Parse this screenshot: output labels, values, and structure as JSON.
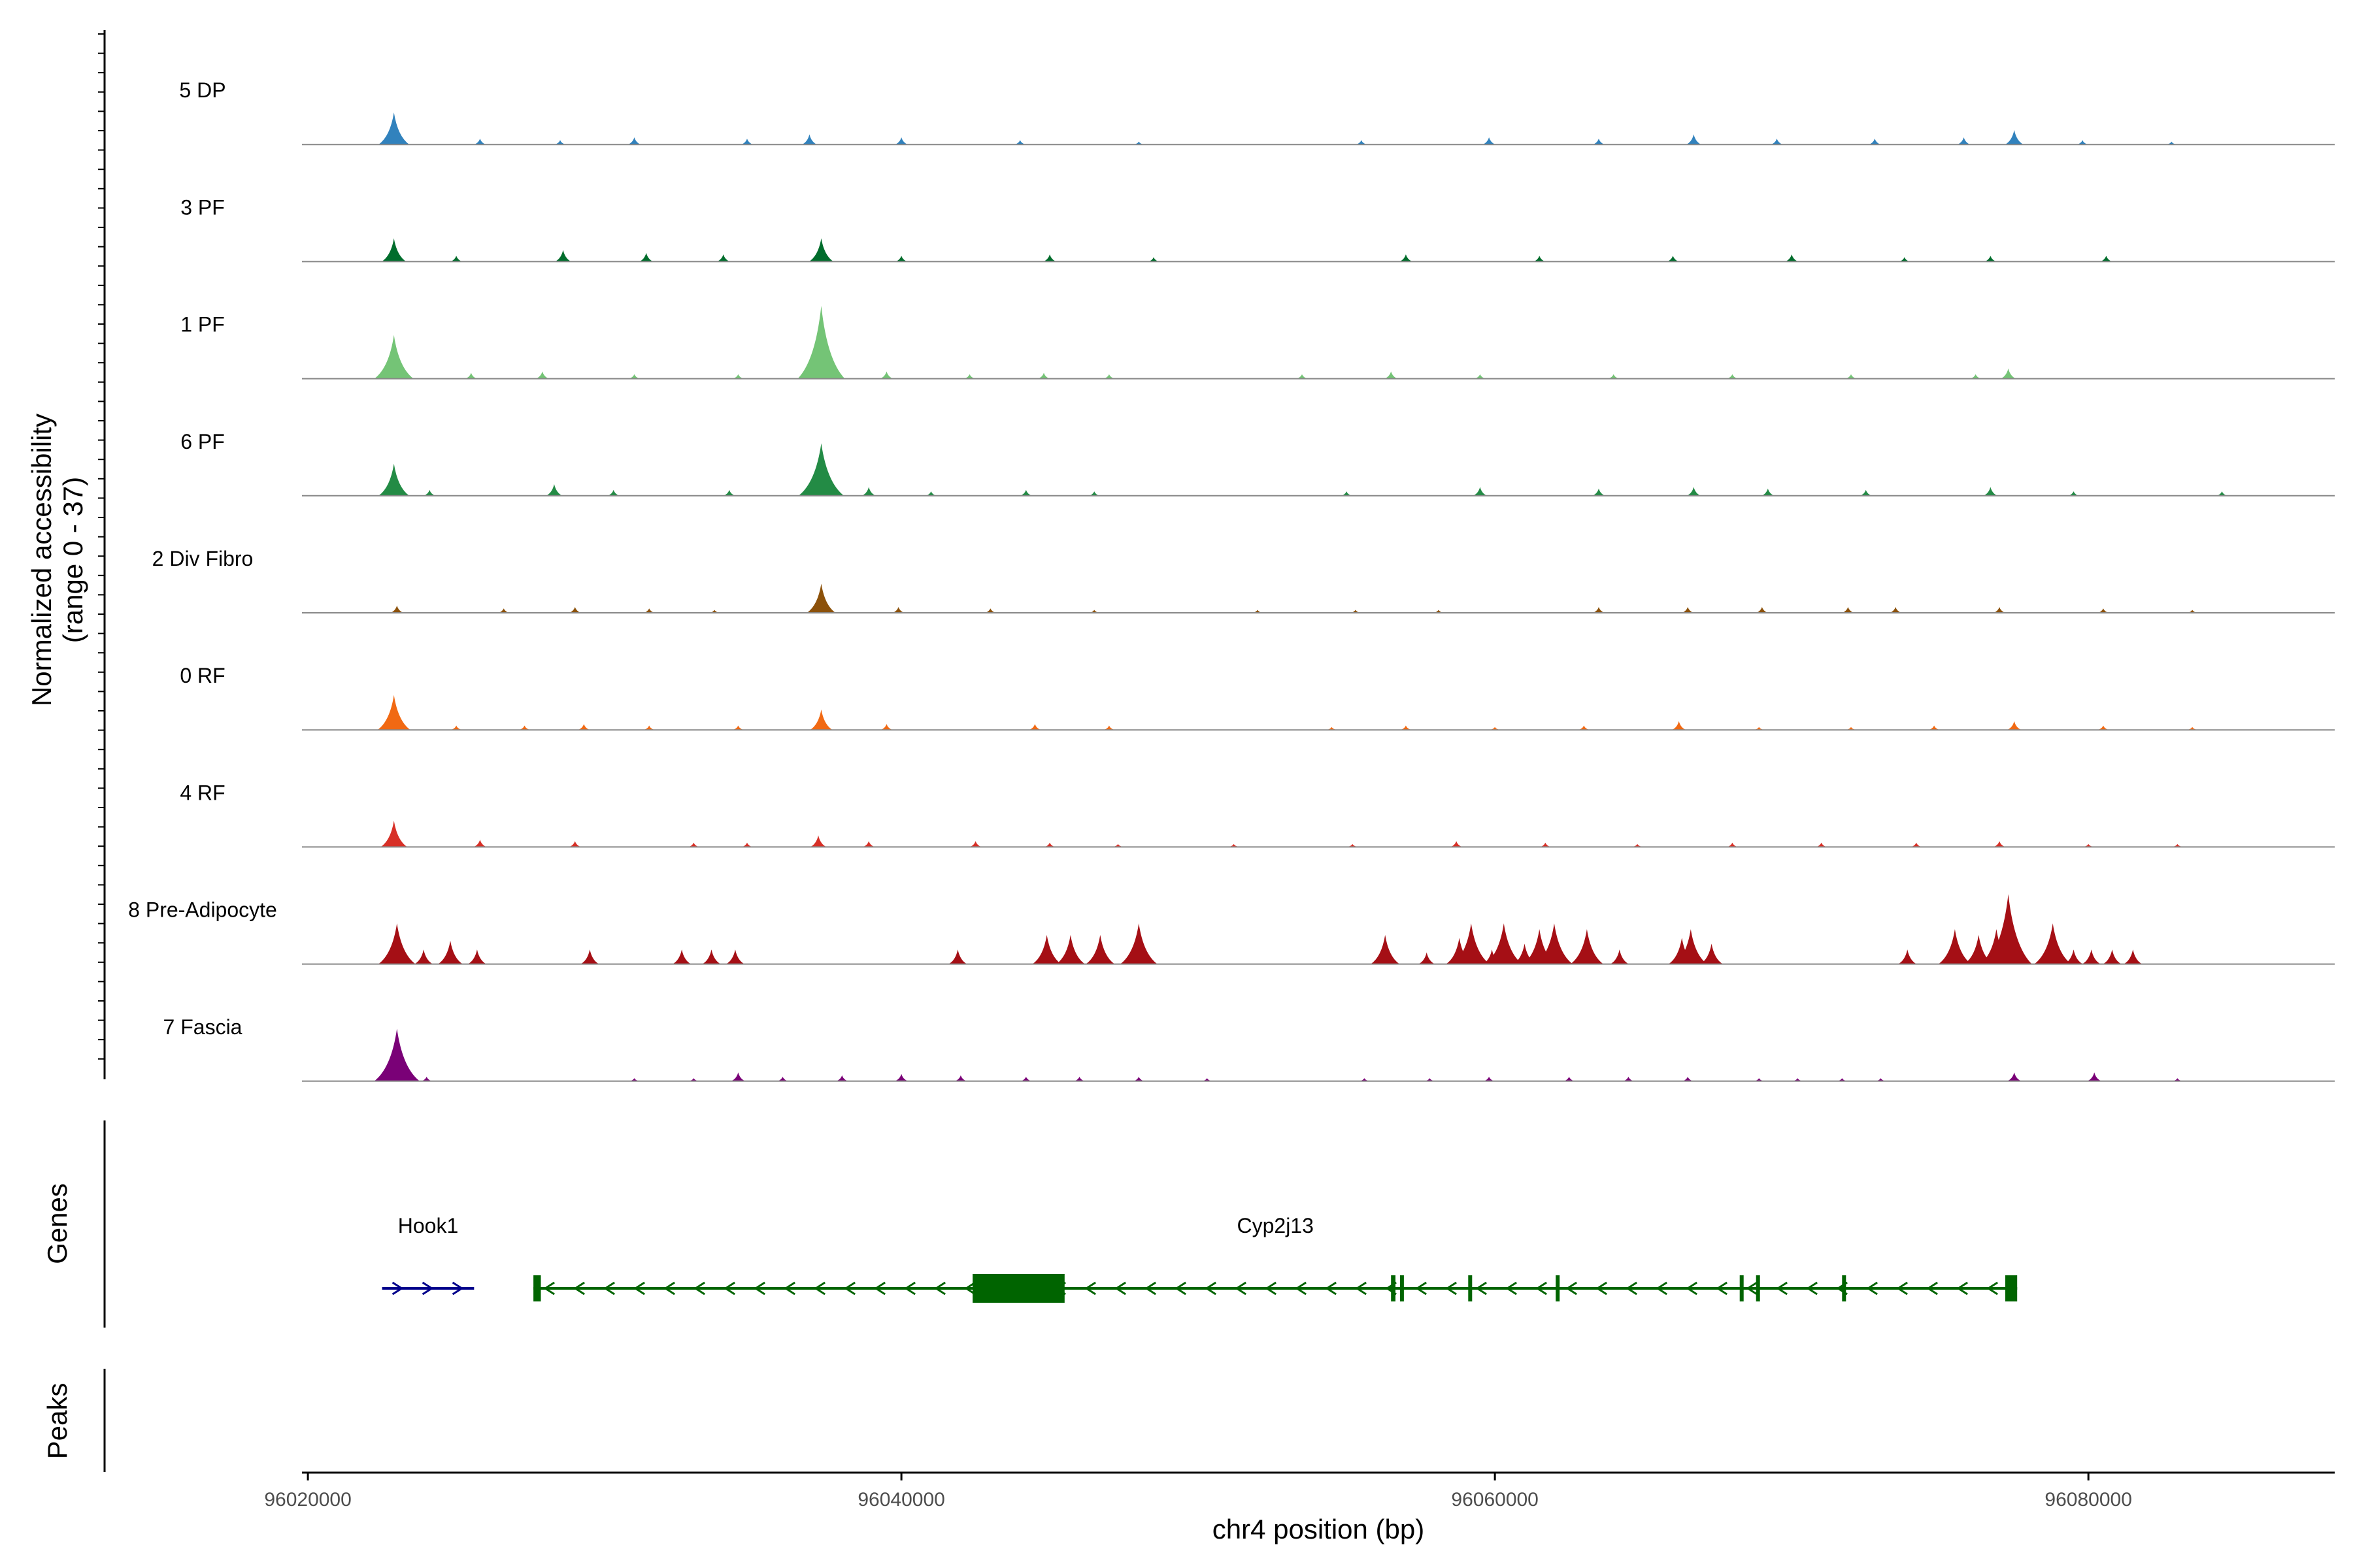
{
  "chart_data": {
    "type": "area",
    "title": "",
    "xlabel": "chr4 position (bp)",
    "ylabel": "Normalized accessibility",
    "ylabel_range": "(range 0 - 37)",
    "ylim": [
      0,
      37
    ],
    "xlim": [
      96019800,
      96088300
    ],
    "x_ticks": [
      96020000,
      96040000,
      96060000,
      96080000
    ],
    "x_tick_labels": [
      "96020000",
      "96040000",
      "96060000",
      "96080000"
    ],
    "tracks": [
      {
        "name": "5 DP",
        "color": "#3182bd",
        "peaks": [
          [
            96022900,
            11
          ],
          [
            96025800,
            2
          ],
          [
            96028500,
            1.5
          ],
          [
            96031000,
            2.5
          ],
          [
            96034800,
            2
          ],
          [
            96036900,
            3.5
          ],
          [
            96040000,
            2.5
          ],
          [
            96044000,
            1.5
          ],
          [
            96048000,
            1
          ],
          [
            96055500,
            1.5
          ],
          [
            96059800,
            2.5
          ],
          [
            96063500,
            2
          ],
          [
            96066700,
            3.5
          ],
          [
            96069500,
            2
          ],
          [
            96072800,
            2
          ],
          [
            96075800,
            2.5
          ],
          [
            96077500,
            5
          ],
          [
            96079800,
            1.5
          ],
          [
            96082800,
            1
          ]
        ]
      },
      {
        "name": "3 PF",
        "color": "#006d2c",
        "peaks": [
          [
            96022900,
            8
          ],
          [
            96025000,
            2
          ],
          [
            96028600,
            4
          ],
          [
            96031400,
            3
          ],
          [
            96034000,
            2.5
          ],
          [
            96037300,
            8
          ],
          [
            96040000,
            2
          ],
          [
            96045000,
            2.5
          ],
          [
            96048500,
            1.5
          ],
          [
            96057000,
            2.5
          ],
          [
            96061500,
            2
          ],
          [
            96066000,
            2
          ],
          [
            96070000,
            2.5
          ],
          [
            96073800,
            1.5
          ],
          [
            96076700,
            2
          ],
          [
            96080600,
            2
          ]
        ]
      },
      {
        "name": "1 PF",
        "color": "#74c476",
        "peaks": [
          [
            96022900,
            15
          ],
          [
            96025500,
            2
          ],
          [
            96027900,
            2.5
          ],
          [
            96031000,
            1.5
          ],
          [
            96034500,
            1.5
          ],
          [
            96037300,
            25
          ],
          [
            96039500,
            2.5
          ],
          [
            96042300,
            1.5
          ],
          [
            96044800,
            2
          ],
          [
            96047000,
            1.5
          ],
          [
            96053500,
            1.5
          ],
          [
            96056500,
            2.5
          ],
          [
            96059500,
            1.5
          ],
          [
            96064000,
            1.5
          ],
          [
            96068000,
            1.5
          ],
          [
            96072000,
            1.5
          ],
          [
            96076200,
            1.5
          ],
          [
            96077300,
            3.5
          ]
        ]
      },
      {
        "name": "6 PF",
        "color": "#238b45",
        "peaks": [
          [
            96022900,
            11
          ],
          [
            96024100,
            2
          ],
          [
            96028300,
            4
          ],
          [
            96030300,
            2
          ],
          [
            96034200,
            2
          ],
          [
            96037300,
            18
          ],
          [
            96038900,
            3
          ],
          [
            96041000,
            1.5
          ],
          [
            96044200,
            2
          ],
          [
            96046500,
            1.5
          ],
          [
            96055000,
            1.5
          ],
          [
            96059500,
            3
          ],
          [
            96063500,
            2.5
          ],
          [
            96066700,
            3
          ],
          [
            96069200,
            2.5
          ],
          [
            96072500,
            2
          ],
          [
            96076700,
            3
          ],
          [
            96079500,
            1.5
          ],
          [
            96084500,
            1.5
          ]
        ]
      },
      {
        "name": "2 Div Fibro",
        "color": "#8c510a",
        "peaks": [
          [
            96023000,
            2.5
          ],
          [
            96026600,
            1.5
          ],
          [
            96029000,
            2
          ],
          [
            96031500,
            1.5
          ],
          [
            96033700,
            1
          ],
          [
            96037300,
            10
          ],
          [
            96039900,
            2
          ],
          [
            96043000,
            1.5
          ],
          [
            96046500,
            1
          ],
          [
            96052000,
            1
          ],
          [
            96055300,
            1
          ],
          [
            96058100,
            1
          ],
          [
            96063500,
            2
          ],
          [
            96066500,
            2
          ],
          [
            96069000,
            2
          ],
          [
            96071900,
            2
          ],
          [
            96073500,
            2
          ],
          [
            96077000,
            2
          ],
          [
            96080500,
            1.5
          ],
          [
            96083500,
            1
          ]
        ]
      },
      {
        "name": "0 RF",
        "color": "#f16913",
        "peaks": [
          [
            96022900,
            12
          ],
          [
            96025000,
            1.5
          ],
          [
            96027300,
            1.5
          ],
          [
            96029300,
            2
          ],
          [
            96031500,
            1.5
          ],
          [
            96034500,
            1.5
          ],
          [
            96037300,
            7
          ],
          [
            96039500,
            2
          ],
          [
            96044500,
            2
          ],
          [
            96047000,
            1.5
          ],
          [
            96054500,
            1
          ],
          [
            96057000,
            1.5
          ],
          [
            96060000,
            1
          ],
          [
            96063000,
            1.5
          ],
          [
            96066200,
            3
          ],
          [
            96068900,
            1
          ],
          [
            96072000,
            1
          ],
          [
            96074800,
            1.5
          ],
          [
            96077500,
            3
          ],
          [
            96080500,
            1.5
          ],
          [
            96083500,
            1
          ]
        ]
      },
      {
        "name": "4 RF",
        "color": "#d73027",
        "peaks": [
          [
            96022900,
            9
          ],
          [
            96025800,
            2.5
          ],
          [
            96029000,
            2
          ],
          [
            96033000,
            1.5
          ],
          [
            96034800,
            1.5
          ],
          [
            96037200,
            4
          ],
          [
            96038900,
            2
          ],
          [
            96042500,
            2
          ],
          [
            96045000,
            1.5
          ],
          [
            96047300,
            1
          ],
          [
            96051200,
            1
          ],
          [
            96055200,
            1
          ],
          [
            96058700,
            2
          ],
          [
            96061700,
            1.5
          ],
          [
            96064800,
            1
          ],
          [
            96068000,
            1.5
          ],
          [
            96071000,
            1.5
          ],
          [
            96074200,
            1.5
          ],
          [
            96077000,
            2
          ],
          [
            96080000,
            1
          ],
          [
            96083000,
            1
          ]
        ]
      },
      {
        "name": "8 Pre-Adipocyte",
        "color": "#a50f15",
        "peaks": [
          [
            96023000,
            14
          ],
          [
            96023900,
            5
          ],
          [
            96024800,
            8
          ],
          [
            96025700,
            5
          ],
          [
            96029500,
            5
          ],
          [
            96032600,
            5
          ],
          [
            96033600,
            5
          ],
          [
            96034400,
            5
          ],
          [
            96041900,
            5
          ],
          [
            96044900,
            10
          ],
          [
            96045700,
            10
          ],
          [
            96046700,
            10
          ],
          [
            96048000,
            14
          ],
          [
            96056300,
            10
          ],
          [
            96057700,
            4
          ],
          [
            96058800,
            9
          ],
          [
            96059200,
            14
          ],
          [
            96059900,
            5
          ],
          [
            96060300,
            14
          ],
          [
            96061000,
            7
          ],
          [
            96061500,
            12
          ],
          [
            96062000,
            14
          ],
          [
            96063100,
            12
          ],
          [
            96064200,
            5
          ],
          [
            96066300,
            9
          ],
          [
            96066600,
            12
          ],
          [
            96067300,
            7
          ],
          [
            96073900,
            5
          ],
          [
            96075500,
            12
          ],
          [
            96076300,
            10
          ],
          [
            96076900,
            12
          ],
          [
            96077300,
            24
          ],
          [
            96077600,
            8
          ],
          [
            96078800,
            14
          ],
          [
            96079500,
            5
          ],
          [
            96080100,
            5
          ],
          [
            96080800,
            5
          ],
          [
            96081500,
            5
          ]
        ]
      },
      {
        "name": "7 Fascia",
        "color": "#7a0177",
        "peaks": [
          [
            96023000,
            18
          ],
          [
            96024000,
            1.5
          ],
          [
            96031000,
            1
          ],
          [
            96033000,
            1
          ],
          [
            96034500,
            3
          ],
          [
            96036000,
            1.5
          ],
          [
            96038000,
            2
          ],
          [
            96040000,
            2.5
          ],
          [
            96042000,
            2
          ],
          [
            96044200,
            1.5
          ],
          [
            96046000,
            1.5
          ],
          [
            96048000,
            1.5
          ],
          [
            96050300,
            1
          ],
          [
            96055600,
            1
          ],
          [
            96057800,
            1
          ],
          [
            96059800,
            1.5
          ],
          [
            96062500,
            1.5
          ],
          [
            96064500,
            1.5
          ],
          [
            96066500,
            1.5
          ],
          [
            96068900,
            1
          ],
          [
            96070200,
            1
          ],
          [
            96071700,
            1
          ],
          [
            96073000,
            1
          ],
          [
            96077500,
            3
          ],
          [
            96080200,
            3
          ],
          [
            96083000,
            1
          ]
        ]
      }
    ],
    "genes": [
      {
        "name": "Hook1",
        "color": "#00008b",
        "strand": "+",
        "start": 96022500,
        "end": 96025600,
        "exons": []
      },
      {
        "name": "Cyp2j13",
        "color": "#006400",
        "strand": "-",
        "start": 96027600,
        "end": 96077600,
        "exons": [
          [
            96027600,
            96027850
          ],
          [
            96042400,
            96045500
          ],
          [
            96056500,
            96056650
          ],
          [
            96056800,
            96056920
          ],
          [
            96059100,
            96059200
          ],
          [
            96062050,
            96062150
          ],
          [
            96068250,
            96068350
          ],
          [
            96068800,
            96068920
          ],
          [
            96071700,
            96071800
          ],
          [
            96077200,
            96077600
          ]
        ]
      }
    ],
    "panels": [
      "Genes",
      "Peaks"
    ]
  }
}
